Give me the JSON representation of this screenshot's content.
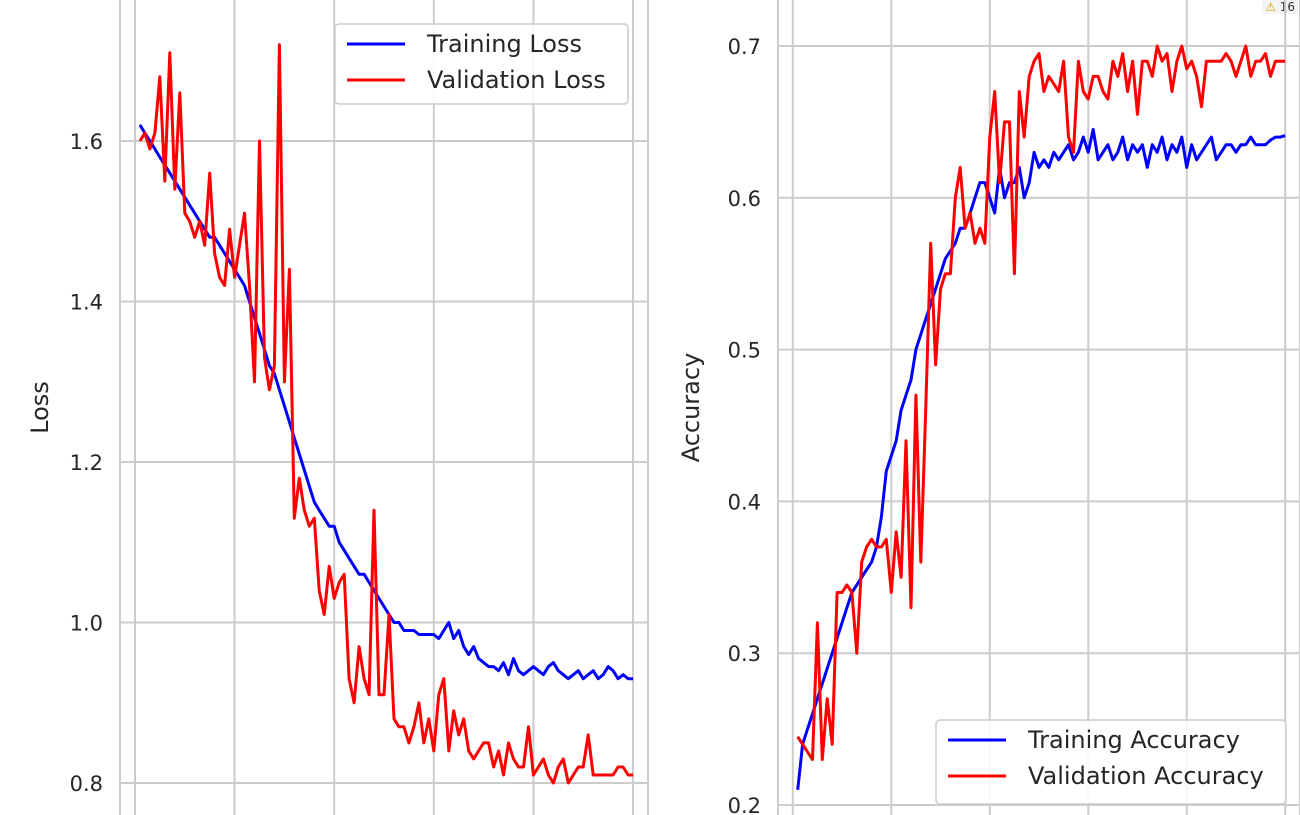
{
  "badge": {
    "icon": "warning-icon",
    "count": "16"
  },
  "colors": {
    "training": "#0000ff",
    "validation": "#ff0000",
    "grid": "#cccccc"
  },
  "chart_data": [
    {
      "type": "line",
      "title": "",
      "xlabel": "",
      "ylabel": "Loss",
      "ylim": [
        0.78,
        1.78
      ],
      "yticks": [
        "0.8",
        "1.0",
        "1.2",
        "1.4",
        "1.6"
      ],
      "ytick_values": [
        0.8,
        1.0,
        1.2,
        1.4,
        1.6
      ],
      "xlim": [
        -3,
        103
      ],
      "xgrid": [
        0,
        20,
        40,
        60,
        80,
        100
      ],
      "grid": true,
      "legend_position": "top-right",
      "series": [
        {
          "name": "Training Loss",
          "color": "#0000ff",
          "x": [
            1,
            2,
            3,
            4,
            5,
            6,
            7,
            8,
            9,
            10,
            11,
            12,
            13,
            14,
            15,
            16,
            17,
            18,
            19,
            20,
            21,
            22,
            23,
            24,
            25,
            26,
            27,
            28,
            29,
            30,
            31,
            32,
            33,
            34,
            35,
            36,
            37,
            38,
            39,
            40,
            41,
            42,
            43,
            44,
            45,
            46,
            47,
            48,
            49,
            50,
            51,
            52,
            53,
            54,
            55,
            56,
            57,
            58,
            59,
            60,
            61,
            62,
            63,
            64,
            65,
            66,
            67,
            68,
            69,
            70,
            71,
            72,
            73,
            74,
            75,
            76,
            77,
            78,
            79,
            80,
            81,
            82,
            83,
            84,
            85,
            86,
            87,
            88,
            89,
            90,
            91,
            92,
            93,
            94,
            95,
            96,
            97,
            98,
            99,
            100
          ],
          "values": [
            1.62,
            1.61,
            1.6,
            1.59,
            1.58,
            1.57,
            1.56,
            1.55,
            1.54,
            1.53,
            1.52,
            1.51,
            1.5,
            1.49,
            1.48,
            1.48,
            1.47,
            1.46,
            1.45,
            1.44,
            1.43,
            1.42,
            1.4,
            1.38,
            1.36,
            1.34,
            1.32,
            1.31,
            1.29,
            1.27,
            1.25,
            1.23,
            1.21,
            1.19,
            1.17,
            1.15,
            1.14,
            1.13,
            1.12,
            1.12,
            1.1,
            1.09,
            1.08,
            1.07,
            1.06,
            1.06,
            1.05,
            1.04,
            1.03,
            1.02,
            1.01,
            1.0,
            1.0,
            0.99,
            0.99,
            0.99,
            0.985,
            0.985,
            0.985,
            0.985,
            0.98,
            0.99,
            1.0,
            0.98,
            0.99,
            0.97,
            0.96,
            0.97,
            0.955,
            0.95,
            0.945,
            0.945,
            0.94,
            0.95,
            0.935,
            0.955,
            0.94,
            0.935,
            0.94,
            0.945,
            0.94,
            0.935,
            0.945,
            0.95,
            0.94,
            0.935,
            0.93,
            0.935,
            0.94,
            0.93,
            0.935,
            0.94,
            0.93,
            0.935,
            0.945,
            0.94,
            0.93,
            0.935,
            0.93,
            0.93
          ]
        },
        {
          "name": "Validation Loss",
          "color": "#ff0000",
          "x": [
            1,
            2,
            3,
            4,
            5,
            6,
            7,
            8,
            9,
            10,
            11,
            12,
            13,
            14,
            15,
            16,
            17,
            18,
            19,
            20,
            21,
            22,
            23,
            24,
            25,
            26,
            27,
            28,
            29,
            30,
            31,
            32,
            33,
            34,
            35,
            36,
            37,
            38,
            39,
            40,
            41,
            42,
            43,
            44,
            45,
            46,
            47,
            48,
            49,
            50,
            51,
            52,
            53,
            54,
            55,
            56,
            57,
            58,
            59,
            60,
            61,
            62,
            63,
            64,
            65,
            66,
            67,
            68,
            69,
            70,
            71,
            72,
            73,
            74,
            75,
            76,
            77,
            78,
            79,
            80,
            81,
            82,
            83,
            84,
            85,
            86,
            87,
            88,
            89,
            90,
            91,
            92,
            93,
            94,
            95,
            96,
            97,
            98,
            99,
            100
          ],
          "values": [
            1.6,
            1.61,
            1.59,
            1.61,
            1.68,
            1.55,
            1.71,
            1.54,
            1.66,
            1.51,
            1.5,
            1.48,
            1.5,
            1.47,
            1.56,
            1.46,
            1.43,
            1.42,
            1.49,
            1.43,
            1.47,
            1.51,
            1.42,
            1.3,
            1.6,
            1.33,
            1.29,
            1.32,
            1.72,
            1.3,
            1.44,
            1.13,
            1.18,
            1.14,
            1.12,
            1.13,
            1.04,
            1.01,
            1.07,
            1.03,
            1.05,
            1.06,
            0.93,
            0.9,
            0.97,
            0.93,
            0.91,
            1.14,
            0.91,
            0.91,
            1.01,
            0.88,
            0.87,
            0.87,
            0.85,
            0.87,
            0.9,
            0.85,
            0.88,
            0.84,
            0.91,
            0.93,
            0.84,
            0.89,
            0.86,
            0.88,
            0.84,
            0.83,
            0.84,
            0.85,
            0.85,
            0.82,
            0.84,
            0.81,
            0.85,
            0.83,
            0.82,
            0.82,
            0.87,
            0.81,
            0.82,
            0.83,
            0.81,
            0.8,
            0.82,
            0.83,
            0.8,
            0.81,
            0.82,
            0.82,
            0.86,
            0.81,
            0.81,
            0.81,
            0.81,
            0.81,
            0.82,
            0.82,
            0.81,
            0.81
          ]
        }
      ]
    },
    {
      "type": "line",
      "title": "",
      "xlabel": "",
      "ylabel": "Accuracy",
      "ylim": [
        0.195,
        0.725
      ],
      "yticks": [
        "0.2",
        "0.3",
        "0.4",
        "0.5",
        "0.6",
        "0.7"
      ],
      "ytick_values": [
        0.2,
        0.3,
        0.4,
        0.5,
        0.6,
        0.7
      ],
      "xlim": [
        -3,
        103
      ],
      "xgrid": [
        0,
        20,
        40,
        60,
        80,
        100
      ],
      "grid": true,
      "legend_position": "bottom-right",
      "series": [
        {
          "name": "Training Accuracy",
          "color": "#0000ff",
          "x": [
            1,
            2,
            3,
            4,
            5,
            6,
            7,
            8,
            9,
            10,
            11,
            12,
            13,
            14,
            15,
            16,
            17,
            18,
            19,
            20,
            21,
            22,
            23,
            24,
            25,
            26,
            27,
            28,
            29,
            30,
            31,
            32,
            33,
            34,
            35,
            36,
            37,
            38,
            39,
            40,
            41,
            42,
            43,
            44,
            45,
            46,
            47,
            48,
            49,
            50,
            51,
            52,
            53,
            54,
            55,
            56,
            57,
            58,
            59,
            60,
            61,
            62,
            63,
            64,
            65,
            66,
            67,
            68,
            69,
            70,
            71,
            72,
            73,
            74,
            75,
            76,
            77,
            78,
            79,
            80,
            81,
            82,
            83,
            84,
            85,
            86,
            87,
            88,
            89,
            90,
            91,
            92,
            93,
            94,
            95,
            96,
            97,
            98,
            99,
            100
          ],
          "values": [
            0.21,
            0.24,
            0.25,
            0.26,
            0.27,
            0.28,
            0.29,
            0.3,
            0.31,
            0.32,
            0.33,
            0.34,
            0.345,
            0.35,
            0.355,
            0.36,
            0.37,
            0.39,
            0.42,
            0.43,
            0.44,
            0.46,
            0.47,
            0.48,
            0.5,
            0.51,
            0.52,
            0.53,
            0.54,
            0.55,
            0.56,
            0.565,
            0.57,
            0.58,
            0.58,
            0.59,
            0.6,
            0.61,
            0.61,
            0.6,
            0.59,
            0.62,
            0.6,
            0.61,
            0.61,
            0.62,
            0.6,
            0.61,
            0.63,
            0.62,
            0.625,
            0.62,
            0.63,
            0.625,
            0.63,
            0.635,
            0.625,
            0.63,
            0.64,
            0.63,
            0.645,
            0.625,
            0.63,
            0.635,
            0.625,
            0.63,
            0.64,
            0.625,
            0.635,
            0.63,
            0.635,
            0.62,
            0.635,
            0.63,
            0.64,
            0.625,
            0.635,
            0.63,
            0.64,
            0.62,
            0.635,
            0.625,
            0.63,
            0.635,
            0.64,
            0.625,
            0.63,
            0.635,
            0.635,
            0.63,
            0.635,
            0.635,
            0.64,
            0.635,
            0.635,
            0.635,
            0.638,
            0.64,
            0.64,
            0.641
          ]
        },
        {
          "name": "Validation Accuracy",
          "color": "#ff0000",
          "x": [
            1,
            2,
            3,
            4,
            5,
            6,
            7,
            8,
            9,
            10,
            11,
            12,
            13,
            14,
            15,
            16,
            17,
            18,
            19,
            20,
            21,
            22,
            23,
            24,
            25,
            26,
            27,
            28,
            29,
            30,
            31,
            32,
            33,
            34,
            35,
            36,
            37,
            38,
            39,
            40,
            41,
            42,
            43,
            44,
            45,
            46,
            47,
            48,
            49,
            50,
            51,
            52,
            53,
            54,
            55,
            56,
            57,
            58,
            59,
            60,
            61,
            62,
            63,
            64,
            65,
            66,
            67,
            68,
            69,
            70,
            71,
            72,
            73,
            74,
            75,
            76,
            77,
            78,
            79,
            80,
            81,
            82,
            83,
            84,
            85,
            86,
            87,
            88,
            89,
            90,
            91,
            92,
            93,
            94,
            95,
            96,
            97,
            98,
            99,
            100
          ],
          "values": [
            0.245,
            0.24,
            0.235,
            0.23,
            0.32,
            0.23,
            0.27,
            0.24,
            0.34,
            0.34,
            0.345,
            0.34,
            0.3,
            0.36,
            0.37,
            0.375,
            0.37,
            0.37,
            0.375,
            0.34,
            0.38,
            0.35,
            0.44,
            0.33,
            0.47,
            0.36,
            0.46,
            0.57,
            0.49,
            0.54,
            0.55,
            0.55,
            0.6,
            0.62,
            0.58,
            0.59,
            0.57,
            0.58,
            0.57,
            0.64,
            0.67,
            0.61,
            0.65,
            0.65,
            0.55,
            0.67,
            0.64,
            0.68,
            0.69,
            0.695,
            0.67,
            0.68,
            0.675,
            0.67,
            0.69,
            0.64,
            0.63,
            0.69,
            0.67,
            0.665,
            0.68,
            0.68,
            0.67,
            0.665,
            0.69,
            0.68,
            0.695,
            0.67,
            0.69,
            0.655,
            0.69,
            0.69,
            0.68,
            0.7,
            0.69,
            0.695,
            0.67,
            0.69,
            0.7,
            0.685,
            0.69,
            0.68,
            0.66,
            0.69,
            0.69,
            0.69,
            0.69,
            0.695,
            0.69,
            0.68,
            0.69,
            0.7,
            0.68,
            0.69,
            0.69,
            0.695,
            0.68,
            0.69,
            0.69,
            0.69
          ]
        }
      ]
    }
  ]
}
